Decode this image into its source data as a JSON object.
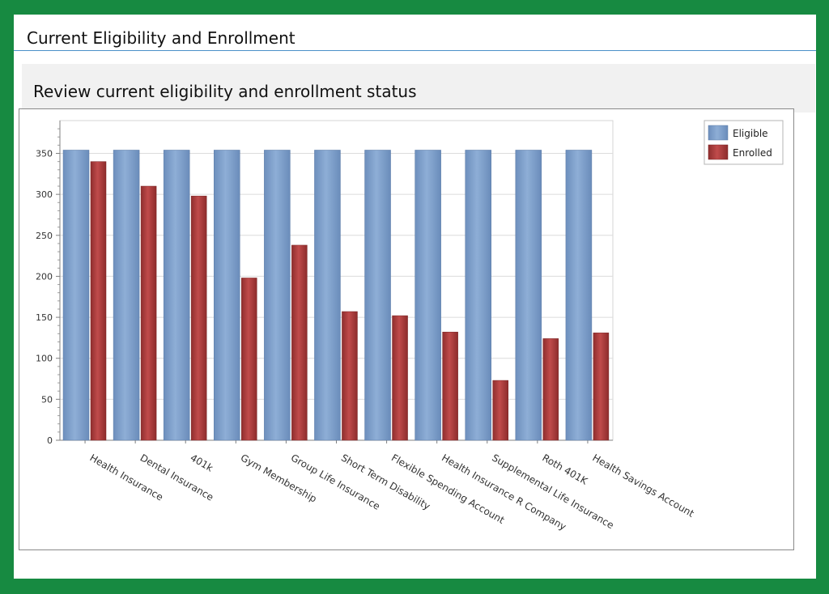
{
  "header": {
    "title": "Current Eligibility and Enrollment"
  },
  "subheader": {
    "title": "Review current eligibility and enrollment status"
  },
  "chart_data": {
    "type": "bar",
    "categories": [
      "Health Insurance",
      "Dental Insurance",
      "401k",
      "Gym Membership",
      "Group Life Insurance",
      "Short Term Disability",
      "Flexible Spending Account",
      "Health Insurance R Company",
      "Supplemental Life Insurance",
      "Roth 401K",
      "Health Savings Account"
    ],
    "series": [
      {
        "name": "Eligible",
        "color": "#7f9fc8",
        "values": [
          354,
          354,
          354,
          354,
          354,
          354,
          354,
          354,
          354,
          354,
          354
        ]
      },
      {
        "name": "Enrolled",
        "color": "#a93b3b",
        "values": [
          340,
          310,
          298,
          198,
          238,
          157,
          152,
          132,
          73,
          124,
          131
        ]
      }
    ],
    "yticks": [
      0,
      50,
      100,
      150,
      200,
      250,
      300,
      350
    ],
    "ylim": [
      0,
      390
    ],
    "grid": true,
    "legend_position": "top-right"
  }
}
